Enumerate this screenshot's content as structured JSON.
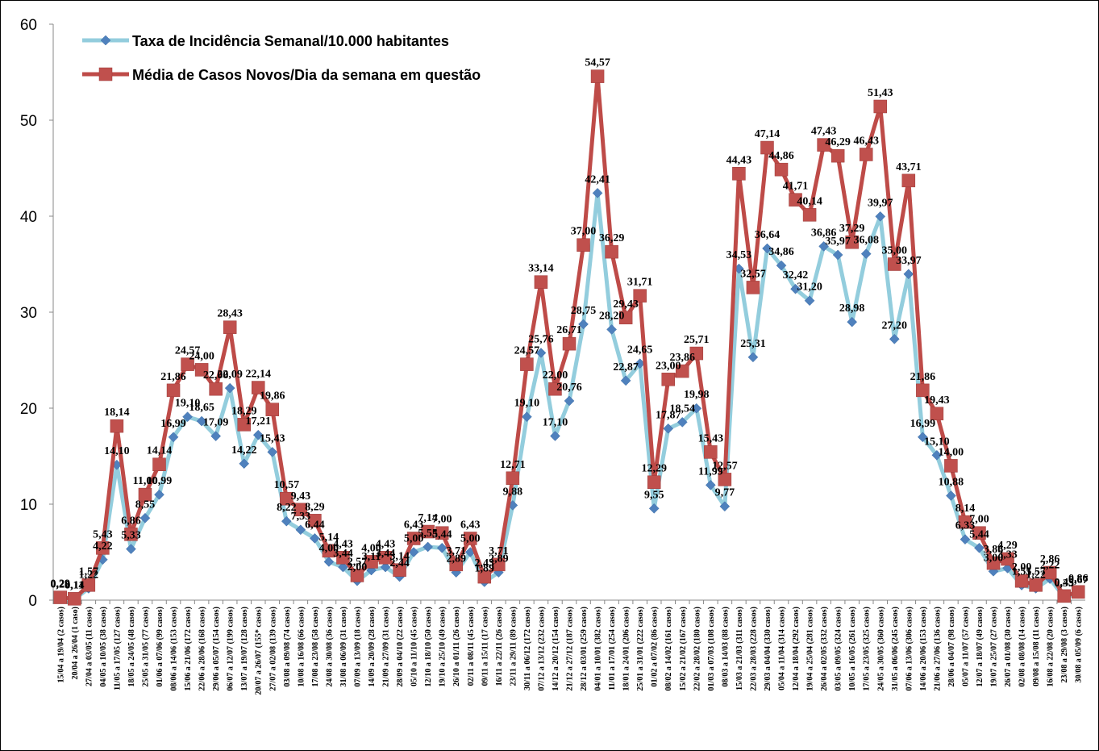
{
  "chart_data": {
    "type": "line",
    "x": [
      "15/04 a 19/04 (2 casos)",
      "20/04 a 26/04 (1 caso)",
      "27/04 a 03/05 (11 casos)",
      "04/05 a 10/05 (38 casos)",
      "11/05 a 17/05 (127 casos)",
      "18/05 a 24/05 (48 casos)",
      "25/05 a 31/05 (77 casos)",
      "01/06 a 07/06 (99 casos)",
      "08/06 a 14/06 (153 casos)",
      "15/06 a 21/06 (172 casos)",
      "22/06 a 28/06 (168 casos)",
      "29/06 a 05/07 (154 casos)",
      "06/07 a 12/07 (199 casos)",
      "13/07 a 19/07 (128 casos)",
      "20/07 a 26/07 (155* casos)",
      "27/07 a 02/08 (139 casos)",
      "03/08 a 09/08 (74 casos)",
      "10/08 a 16/08 (66 casos)",
      "17/08 a 23/08 (58 casos)",
      "24/08 a 30/08 (36 casos)",
      "31/08 a 06/09 (31 casos)",
      "07/09 a 13/09 (18 casos)",
      "14/09 a 20/09 (28 casos)",
      "21/09 a 27/09 (31 casos)",
      "28/09 a 04/10 (22 casos)",
      "05/10 a 11/10 (45 casos)",
      "12/10 a 18/10 (50 casos)",
      "19/10 a 25/10 (49 casos)",
      "26/10 a 01/11 (26 casos)",
      "02/11 a 08/11 (45 casos)",
      "09/11 a 15/11 (17 casos)",
      "16/11 a 22/11 (26 casos)",
      "23/11 a 29/11 (89 casos)",
      "30/11 a 06/12 (172 casos)",
      "07/12 a 13/12 (232 casos)",
      "14/12 a 20/12 (154 casos)",
      "21/12 a 27/12 (187 casos)",
      "28/12 a 03/01 (259 casos)",
      "04/01 a 10/01 (382 casos)",
      "11/01 a 17/01 (254 casos)",
      "18/01 a 24/01 (206 casos)",
      "25/01 a 31/01 (222 casos)",
      "01/02 a 07/02 (86 casos)",
      "08/02 a 14/02 (161 casos)",
      "15/02 a 21/02 (167 casos)",
      "22/02 a 28/02 (180 casos)",
      "01/03 a 07/03 (108 casos)",
      "08/03 a 14/03 (88 casos)",
      "15/03 a 21/03 (311 casos)",
      "22/03 a 28/03 (228 casos)",
      "29/03 a 04/04 (330 casos)",
      "05/04 a 11/04 (314 casos)",
      "12/04 a 18/04 (292 casos)",
      "19/04 a 25/04 (281 casos)",
      "26/04 a 02/05 (332 casos)",
      "03/05 a 09/05 (324 casos)",
      "10/05 a 16/05 (261 casos)",
      "17/05 a 23/05 (325 casos)",
      "24/05 a 30/05 (360 casos)",
      "31/05 a 06/06 (245 casos)",
      "07/06 a 13/06 (306 casos)",
      "14/06 a 20/06 (153 casos)",
      "21/06 a 27/06 (136 casos)",
      "28/06 a 04/07 (98 casos)",
      "05/07 a 11/07 (57 casos)",
      "12/07 a 18/07 (49 casos)",
      "19/07 a 25/07 (27 casos)",
      "26/07 a 01/08 (30 casos)",
      "02/08 a 08/08 (14 casos)",
      "09/08 a 15/08 (11 casos)",
      "16/08 a 22/08 (20 casos)",
      "23/08 a 29/08 (3 casos)",
      "30/08 a 05/09 (6 casos)"
    ],
    "series": [
      {
        "name": "Taxa de Incidência Semanal/10.000 habitantes",
        "color": "#93cddd",
        "marker_color": "#4f81bd",
        "marker": "diamond",
        "values": [
          0.22,
          0.11,
          1.22,
          4.22,
          14.1,
          5.33,
          8.55,
          10.99,
          16.99,
          19.1,
          18.65,
          17.09,
          22.09,
          14.22,
          17.21,
          15.43,
          8.22,
          7.33,
          6.44,
          4.0,
          3.44,
          2.0,
          3.11,
          3.44,
          2.44,
          5.0,
          5.55,
          5.44,
          2.89,
          5.0,
          1.89,
          2.89,
          9.88,
          19.1,
          25.76,
          17.1,
          20.76,
          28.75,
          42.41,
          28.2,
          22.87,
          24.65,
          9.55,
          17.87,
          18.54,
          19.98,
          11.99,
          9.77,
          34.53,
          25.31,
          36.64,
          34.86,
          32.42,
          31.2,
          36.86,
          35.97,
          28.98,
          36.08,
          39.97,
          27.2,
          33.97,
          16.99,
          15.1,
          10.88,
          6.33,
          5.44,
          3.0,
          3.33,
          1.55,
          1.22,
          2.22,
          0.33,
          0.67
        ],
        "value_labels": [
          "0,22",
          "0,11",
          "1,22",
          "4,22",
          "14,10",
          "5,33",
          "8,55",
          "10,99",
          "16,99",
          "19,10",
          "18,65",
          "17,09",
          "22,09",
          "14,22",
          "17,21",
          "15,43",
          "8,22",
          "7,33",
          "6,44",
          "4,00",
          "3,44",
          "2,00",
          "3,11",
          "3,44",
          "2,44",
          "5,00",
          "5,55",
          "5,44",
          "2,89",
          "5,00",
          "1,89",
          "2,89",
          "9,88",
          "19,10",
          "25,76",
          "17,10",
          "20,76",
          "28,75",
          "42,41",
          "28,20",
          "22,87",
          "24,65",
          "9,55",
          "17,87",
          "18,54",
          "19,98",
          "11,99",
          "9,77",
          "34,53",
          "25,31",
          "36,64",
          "34,86",
          "32,42",
          "31,20",
          "36,86",
          "35,97",
          "28,98",
          "36,08",
          "39,97",
          "27,20",
          "33,97",
          "16,99",
          "15,10",
          "10,88",
          "6,33",
          "5,44",
          "3,00",
          "3,33",
          "1,55",
          "1,22",
          "2,22",
          "0,33",
          "0,67"
        ]
      },
      {
        "name": "Média de Casos Novos/Dia da semana em questão",
        "color": "#be4b48",
        "marker_color": "#c0504d",
        "marker": "square",
        "values": [
          0.29,
          0.14,
          1.57,
          5.43,
          18.14,
          6.86,
          11.0,
          14.14,
          21.86,
          24.57,
          24.0,
          22.0,
          28.43,
          18.29,
          22.14,
          19.86,
          10.57,
          9.43,
          8.29,
          5.14,
          4.43,
          2.57,
          4.0,
          4.43,
          3.14,
          6.43,
          7.14,
          7.0,
          3.71,
          6.43,
          2.43,
          3.71,
          12.71,
          24.57,
          33.14,
          22.0,
          26.71,
          37.0,
          54.57,
          36.29,
          29.43,
          31.71,
          12.29,
          23.0,
          23.86,
          25.71,
          15.43,
          12.57,
          44.43,
          32.57,
          47.14,
          44.86,
          41.71,
          40.14,
          47.43,
          46.29,
          37.29,
          46.43,
          51.43,
          35.0,
          43.71,
          21.86,
          19.43,
          14.0,
          8.14,
          7.0,
          3.86,
          4.29,
          2.0,
          1.57,
          2.86,
          0.43,
          0.86
        ],
        "value_labels": [
          "0,29",
          "0,14",
          "1,57",
          "5,43",
          "18,14",
          "6,86",
          "11,00",
          "14,14",
          "21,86",
          "24,57",
          "24,00",
          "22,00",
          "28,43",
          "18,29",
          "22,14",
          "19,86",
          "10,57",
          "9,43",
          "8,29",
          "5,14",
          "4,43",
          "2,57",
          "4,00",
          "4,43",
          "3,14",
          "6,43",
          "7,14",
          "7,00",
          "3,71",
          "6,43",
          "2,43",
          "3,71",
          "12,71",
          "24,57",
          "33,14",
          "22,00",
          "26,71",
          "37,00",
          "54,57",
          "36,29",
          "29,43",
          "31,71",
          "12,29",
          "23,00",
          "23,86",
          "25,71",
          "15,43",
          "12,57",
          "44,43",
          "32,57",
          "47,14",
          "44,86",
          "41,71",
          "40,14",
          "47,43",
          "46,29",
          "37,29",
          "46,43",
          "51,43",
          "35,00",
          "43,71",
          "21,86",
          "19,43",
          "14,00",
          "8,14",
          "7,00",
          "3,86",
          "4,29",
          "2,00",
          "1,57",
          "2,86",
          "0,43",
          "0,86"
        ]
      }
    ],
    "ylim": [
      0,
      60
    ],
    "yticks": [
      0,
      10,
      20,
      30,
      40,
      50,
      60
    ],
    "grid": false,
    "legend": "top-left"
  }
}
